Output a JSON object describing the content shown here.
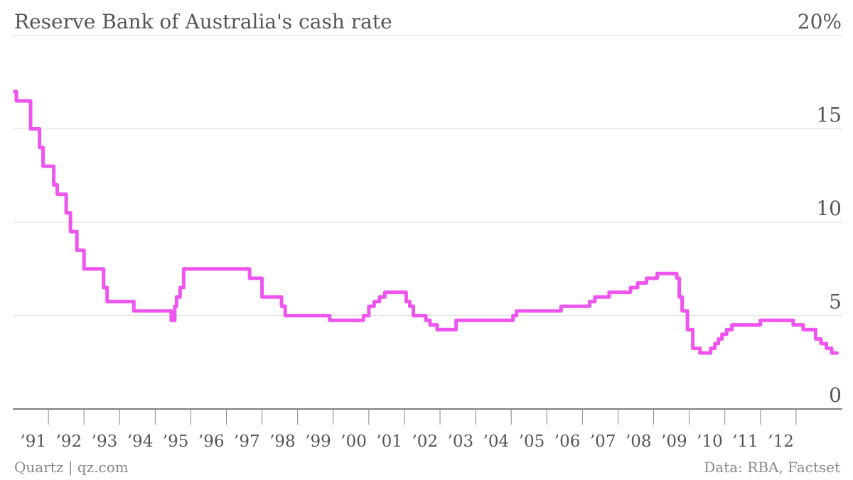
{
  "header": {
    "title": "Reserve Bank of Australia's cash rate"
  },
  "footer": {
    "source_left": "Quartz | qz.com",
    "source_right": "Data: RBA, Factset"
  },
  "colors": {
    "line": "#ee55ee",
    "grid": "#dddddd",
    "axis": "#555555",
    "text": "#555555",
    "footer": "#8a8a8a"
  },
  "chart_data": {
    "type": "line",
    "step": true,
    "title": "Reserve Bank of Australia's cash rate",
    "xlabel": "",
    "ylabel": "",
    "xlim": [
      1990.0,
      2013.3
    ],
    "ylim": [
      0,
      20
    ],
    "grid": true,
    "yticks": [
      {
        "value": 0,
        "label": "0"
      },
      {
        "value": 5,
        "label": "5"
      },
      {
        "value": 10,
        "label": "10"
      },
      {
        "value": 15,
        "label": "15"
      },
      {
        "value": 20,
        "label": "20%"
      }
    ],
    "xticks": [
      {
        "value": 1991,
        "label": "’91"
      },
      {
        "value": 1992,
        "label": "’92"
      },
      {
        "value": 1993,
        "label": "’93"
      },
      {
        "value": 1994,
        "label": "’94"
      },
      {
        "value": 1995,
        "label": "’95"
      },
      {
        "value": 1996,
        "label": "’96"
      },
      {
        "value": 1997,
        "label": "’97"
      },
      {
        "value": 1998,
        "label": "’98"
      },
      {
        "value": 1999,
        "label": "’99"
      },
      {
        "value": 2000,
        "label": "’00"
      },
      {
        "value": 2001,
        "label": "’01"
      },
      {
        "value": 2002,
        "label": "’02"
      },
      {
        "value": 2003,
        "label": "’03"
      },
      {
        "value": 2004,
        "label": "’04"
      },
      {
        "value": 2005,
        "label": "’05"
      },
      {
        "value": 2006,
        "label": "’06"
      },
      {
        "value": 2007,
        "label": "’07"
      },
      {
        "value": 2008,
        "label": "’08"
      },
      {
        "value": 2009,
        "label": "’09"
      },
      {
        "value": 2010,
        "label": "’10"
      },
      {
        "value": 2011,
        "label": "’11"
      },
      {
        "value": 2012,
        "label": "’12"
      }
    ],
    "series": [
      {
        "x": [
          1990.05,
          1990.1,
          1990.5,
          1990.6,
          1990.75,
          1990.85,
          1991.15,
          1991.25,
          1991.5,
          1991.62,
          1991.8,
          1992.0,
          1992.55,
          1992.65,
          1993.05,
          1993.4,
          1994.45,
          1994.55,
          1994.6,
          1994.7,
          1994.8,
          1995.0,
          1996.55,
          1996.65,
          1996.85,
          1997.0,
          1997.35,
          1997.55,
          1997.65,
          1998.9,
          1999.85,
          2000.0,
          2000.15,
          2000.3,
          2000.45,
          2000.65,
          2000.85,
          2001.05,
          2001.15,
          2001.25,
          2001.35,
          2001.6,
          2001.72,
          2001.8,
          2001.92,
          2002.35,
          2002.45,
          2003.9,
          2004.05,
          2004.15,
          2004.65,
          2004.75,
          2005.0,
          2005.2,
          2005.4,
          2005.9,
          2006.1,
          2006.2,
          2006.3,
          2006.35,
          2006.5,
          2006.75,
          2007.0,
          2007.35,
          2007.55,
          2007.7,
          2007.8,
          2007.9,
          2008.1,
          2008.55,
          2008.65,
          2008.72,
          2008.8,
          2008.95,
          2009.1,
          2009.3,
          2009.5,
          2009.6,
          2009.72,
          2009.82,
          2009.92,
          2010.05,
          2010.2,
          2010.85,
          2011.0,
          2011.55,
          2011.8,
          2011.92,
          2012.2,
          2012.35,
          2012.55,
          2012.7,
          2012.75,
          2012.85,
          2013.0,
          2013.15
        ],
        "y": [
          17.0,
          16.5,
          15.0,
          15.0,
          14.0,
          13.0,
          12.0,
          11.5,
          10.5,
          9.5,
          8.5,
          7.5,
          6.5,
          5.75,
          5.75,
          5.25,
          4.75,
          5.5,
          6.0,
          6.5,
          7.5,
          7.5,
          7.5,
          7.0,
          7.0,
          6.0,
          6.0,
          5.5,
          5.0,
          4.75,
          5.0,
          5.5,
          5.75,
          6.0,
          6.25,
          6.25,
          6.25,
          5.75,
          5.5,
          5.0,
          5.0,
          4.75,
          4.5,
          4.5,
          4.25,
          4.25,
          4.75,
          4.75,
          5.0,
          5.25,
          5.25,
          5.25,
          5.25,
          5.25,
          5.5,
          5.5,
          5.5,
          5.75,
          5.75,
          6.0,
          6.0,
          6.25,
          6.25,
          6.5,
          6.75,
          6.75,
          7.0,
          7.0,
          7.25,
          7.25,
          7.0,
          6.0,
          5.25,
          4.25,
          3.25,
          3.0,
          3.0,
          3.25,
          3.5,
          3.75,
          4.0,
          4.25,
          4.5,
          4.5,
          4.75,
          4.75,
          4.75,
          4.5,
          4.25,
          4.25,
          3.75,
          3.5,
          3.5,
          3.25,
          3.0,
          3.0
        ]
      }
    ]
  }
}
